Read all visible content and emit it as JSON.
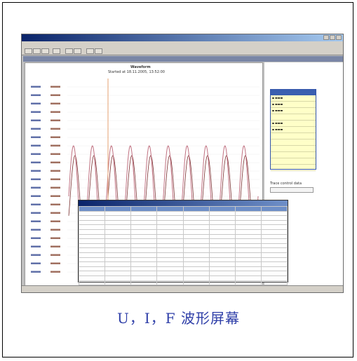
{
  "caption": "U，I，F 波形屏幕",
  "screenshot": {
    "plot_title": "Waveform",
    "plot_subtitle": "Started at 18.11.2005, 13:52:00",
    "legend_panel_label": "Trace  control data"
  },
  "colors": {
    "title_bar": "#0a246a",
    "voltage_trace": "#c07080",
    "current_trace": "#7a3030",
    "cursor_line": "#e6a070",
    "legend_bg": "#ffffc8",
    "caption_text": "#2e3ea8"
  },
  "icons": [
    "app-icon",
    "minimize-icon",
    "maximize-icon",
    "close-icon",
    "checkbox-icon"
  ]
}
